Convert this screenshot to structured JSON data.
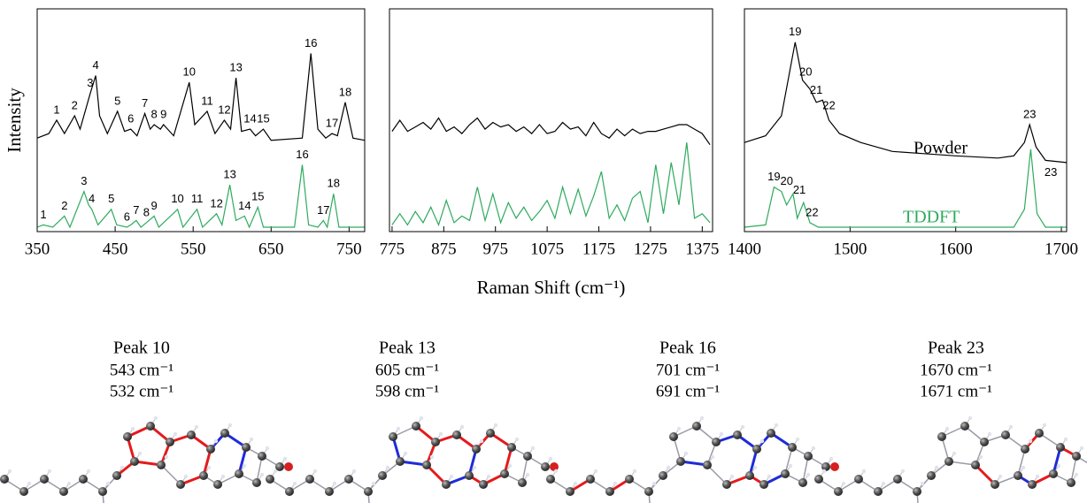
{
  "chart_data": [
    {
      "type": "line",
      "ylabel": "Intensity",
      "xlim": [
        350,
        770
      ],
      "xticks": [
        350,
        450,
        550,
        650,
        750
      ],
      "ylim": [
        0,
        100
      ],
      "series": [
        {
          "color": "#000000",
          "x": [
            350,
            365,
            375,
            385,
            398,
            405,
            418,
            425,
            430,
            440,
            453,
            462,
            470,
            478,
            488,
            495,
            500,
            508,
            512,
            525,
            545,
            552,
            568,
            578,
            590,
            598,
            605,
            612,
            623,
            630,
            640,
            650,
            690,
            701,
            710,
            720,
            728,
            735,
            745,
            755,
            770
          ],
          "values": [
            42,
            44,
            50,
            44,
            52,
            46,
            62,
            70,
            52,
            44,
            54,
            45,
            46,
            43,
            53,
            46,
            48,
            46,
            48,
            43,
            67,
            48,
            54,
            44,
            50,
            46,
            69,
            45,
            46,
            43,
            46,
            41,
            42,
            80,
            46,
            42,
            44,
            43,
            58,
            42,
            41
          ],
          "peaks": [
            {
              "label": 1,
              "x": 375,
              "y": 50
            },
            {
              "label": 2,
              "x": 398,
              "y": 52
            },
            {
              "label": 3,
              "x": 418,
              "y": 62
            },
            {
              "label": 4,
              "x": 425,
              "y": 70
            },
            {
              "label": 5,
              "x": 453,
              "y": 54
            },
            {
              "label": 6,
              "x": 470,
              "y": 46
            },
            {
              "label": 7,
              "x": 488,
              "y": 53
            },
            {
              "label": 8,
              "x": 500,
              "y": 48
            },
            {
              "label": 9,
              "x": 512,
              "y": 48
            },
            {
              "label": 10,
              "x": 545,
              "y": 67
            },
            {
              "label": 11,
              "x": 568,
              "y": 54
            },
            {
              "label": 12,
              "x": 590,
              "y": 50
            },
            {
              "label": 13,
              "x": 605,
              "y": 69
            },
            {
              "label": 14,
              "x": 623,
              "y": 46
            },
            {
              "label": 15,
              "x": 640,
              "y": 46
            },
            {
              "label": 16,
              "x": 701,
              "y": 80
            },
            {
              "label": 17,
              "x": 728,
              "y": 44
            },
            {
              "label": 18,
              "x": 745,
              "y": 58
            }
          ]
        },
        {
          "color": "#2eaa5e",
          "x": [
            350,
            358,
            370,
            385,
            392,
            410,
            416,
            420,
            428,
            445,
            452,
            465,
            470,
            477,
            483,
            490,
            500,
            506,
            530,
            537,
            555,
            562,
            580,
            587,
            597,
            605,
            616,
            622,
            633,
            640,
            680,
            690,
            698,
            710,
            717,
            722,
            730,
            737,
            770
          ],
          "values": [
            2,
            3,
            2,
            7,
            2,
            18,
            12,
            10,
            3,
            10,
            3,
            2,
            3,
            5,
            2,
            4,
            7,
            2,
            10,
            2,
            10,
            2,
            8,
            3,
            21,
            5,
            7,
            2,
            11,
            2,
            2,
            30,
            3,
            2,
            5,
            2,
            17,
            2,
            2
          ],
          "peaks": [
            {
              "label": 1,
              "x": 358,
              "y": 3
            },
            {
              "label": 2,
              "x": 385,
              "y": 7
            },
            {
              "label": 3,
              "x": 410,
              "y": 18
            },
            {
              "label": 4,
              "x": 420,
              "y": 10
            },
            {
              "label": 5,
              "x": 445,
              "y": 10
            },
            {
              "label": 6,
              "x": 465,
              "y": 2
            },
            {
              "label": 7,
              "x": 477,
              "y": 5
            },
            {
              "label": 8,
              "x": 490,
              "y": 4
            },
            {
              "label": 9,
              "x": 500,
              "y": 7
            },
            {
              "label": 10,
              "x": 530,
              "y": 10
            },
            {
              "label": 11,
              "x": 555,
              "y": 10
            },
            {
              "label": 12,
              "x": 580,
              "y": 8
            },
            {
              "label": 13,
              "x": 597,
              "y": 21
            },
            {
              "label": 14,
              "x": 616,
              "y": 7
            },
            {
              "label": 15,
              "x": 633,
              "y": 11
            },
            {
              "label": 16,
              "x": 690,
              "y": 30
            },
            {
              "label": 17,
              "x": 717,
              "y": 5
            },
            {
              "label": 18,
              "x": 730,
              "y": 17
            }
          ]
        }
      ]
    },
    {
      "type": "line",
      "xlabel": "Raman Shift (cm⁻¹)",
      "xlim": [
        770,
        1395
      ],
      "xticks": [
        775,
        875,
        975,
        1075,
        1175,
        1275,
        1375
      ],
      "ylim": [
        0,
        100
      ],
      "series": [
        {
          "color": "#000000",
          "x": [
            775,
            790,
            805,
            820,
            835,
            850,
            865,
            880,
            895,
            910,
            925,
            940,
            955,
            970,
            985,
            1000,
            1015,
            1030,
            1045,
            1060,
            1075,
            1090,
            1105,
            1120,
            1135,
            1150,
            1165,
            1180,
            1195,
            1210,
            1225,
            1240,
            1255,
            1270,
            1285,
            1300,
            1315,
            1330,
            1345,
            1360,
            1375,
            1390
          ],
          "values": [
            45,
            50,
            45,
            47,
            49,
            46,
            51,
            45,
            47,
            44,
            48,
            51,
            46,
            49,
            47,
            48,
            45,
            47,
            44,
            48,
            44,
            45,
            49,
            46,
            47,
            43,
            49,
            44,
            42,
            46,
            43,
            46,
            44,
            45,
            45,
            46,
            47,
            48,
            48,
            46,
            44,
            39
          ]
        },
        {
          "color": "#2eaa5e",
          "x": [
            775,
            790,
            805,
            820,
            835,
            850,
            865,
            880,
            895,
            910,
            925,
            940,
            955,
            970,
            985,
            1000,
            1015,
            1030,
            1045,
            1060,
            1075,
            1090,
            1105,
            1120,
            1135,
            1150,
            1165,
            1180,
            1195,
            1210,
            1225,
            1240,
            1255,
            1270,
            1285,
            1300,
            1315,
            1330,
            1345,
            1360,
            1375,
            1390
          ],
          "values": [
            3,
            8,
            3,
            9,
            4,
            11,
            3,
            14,
            4,
            7,
            5,
            20,
            5,
            17,
            4,
            13,
            6,
            11,
            5,
            9,
            14,
            6,
            20,
            8,
            19,
            7,
            16,
            27,
            6,
            12,
            5,
            15,
            18,
            4,
            30,
            8,
            31,
            12,
            40,
            6,
            8,
            4
          ]
        }
      ]
    },
    {
      "type": "line",
      "xlim": [
        1400,
        1705
      ],
      "xticks": [
        1400,
        1500,
        1600,
        1700
      ],
      "ylim": [
        0,
        100
      ],
      "series": [
        {
          "name": "Powder",
          "color": "#000000",
          "name_x": 1560,
          "name_y": 37,
          "x": [
            1400,
            1420,
            1435,
            1448,
            1455,
            1462,
            1468,
            1474,
            1480,
            1490,
            1510,
            1540,
            1570,
            1600,
            1640,
            1655,
            1665,
            1670,
            1676,
            1685,
            1705
          ],
          "values": [
            40,
            43,
            52,
            85,
            68,
            64,
            58,
            59,
            50,
            44,
            40,
            36,
            35,
            34,
            33,
            34,
            40,
            48,
            38,
            32,
            31
          ],
          "peaks": [
            {
              "label": 19,
              "x": 1448,
              "y": 85
            },
            {
              "label": 20,
              "x": 1458,
              "y": 67
            },
            {
              "label": 21,
              "x": 1468,
              "y": 59
            },
            {
              "label": 22,
              "x": 1480,
              "y": 52
            },
            {
              "label": 23,
              "x": 1670,
              "y": 48
            }
          ]
        },
        {
          "name": "TDDFT",
          "color": "#2eaa5e",
          "name_x": 1550,
          "name_y": 6,
          "x": [
            1400,
            1420,
            1428,
            1435,
            1440,
            1446,
            1450,
            1456,
            1462,
            1470,
            1500,
            1655,
            1665,
            1671,
            1677,
            1685,
            1705
          ],
          "values": [
            2,
            3,
            20,
            18,
            12,
            17,
            6,
            13,
            4,
            2,
            2,
            2,
            10,
            37,
            8,
            2,
            2
          ],
          "peaks": [
            {
              "label": 19,
              "x": 1428,
              "y": 20
            },
            {
              "label": 20,
              "x": 1440,
              "y": 18
            },
            {
              "label": 21,
              "x": 1452,
              "y": 14
            },
            {
              "label": 22,
              "x": 1464,
              "y": 4
            },
            {
              "label": 23,
              "x": 1690,
              "y": 22
            }
          ]
        }
      ]
    }
  ],
  "molecules": [
    {
      "title": "Peak 10",
      "lines": [
        "543 cm⁻¹",
        "532 cm⁻¹"
      ]
    },
    {
      "title": "Peak 13",
      "lines": [
        "605 cm⁻¹",
        "598 cm⁻¹"
      ]
    },
    {
      "title": "Peak 16",
      "lines": [
        "701 cm⁻¹",
        "691 cm⁻¹"
      ]
    },
    {
      "title": "Peak 23",
      "lines": [
        "1670 cm⁻¹",
        "1671 cm⁻¹"
      ]
    }
  ]
}
